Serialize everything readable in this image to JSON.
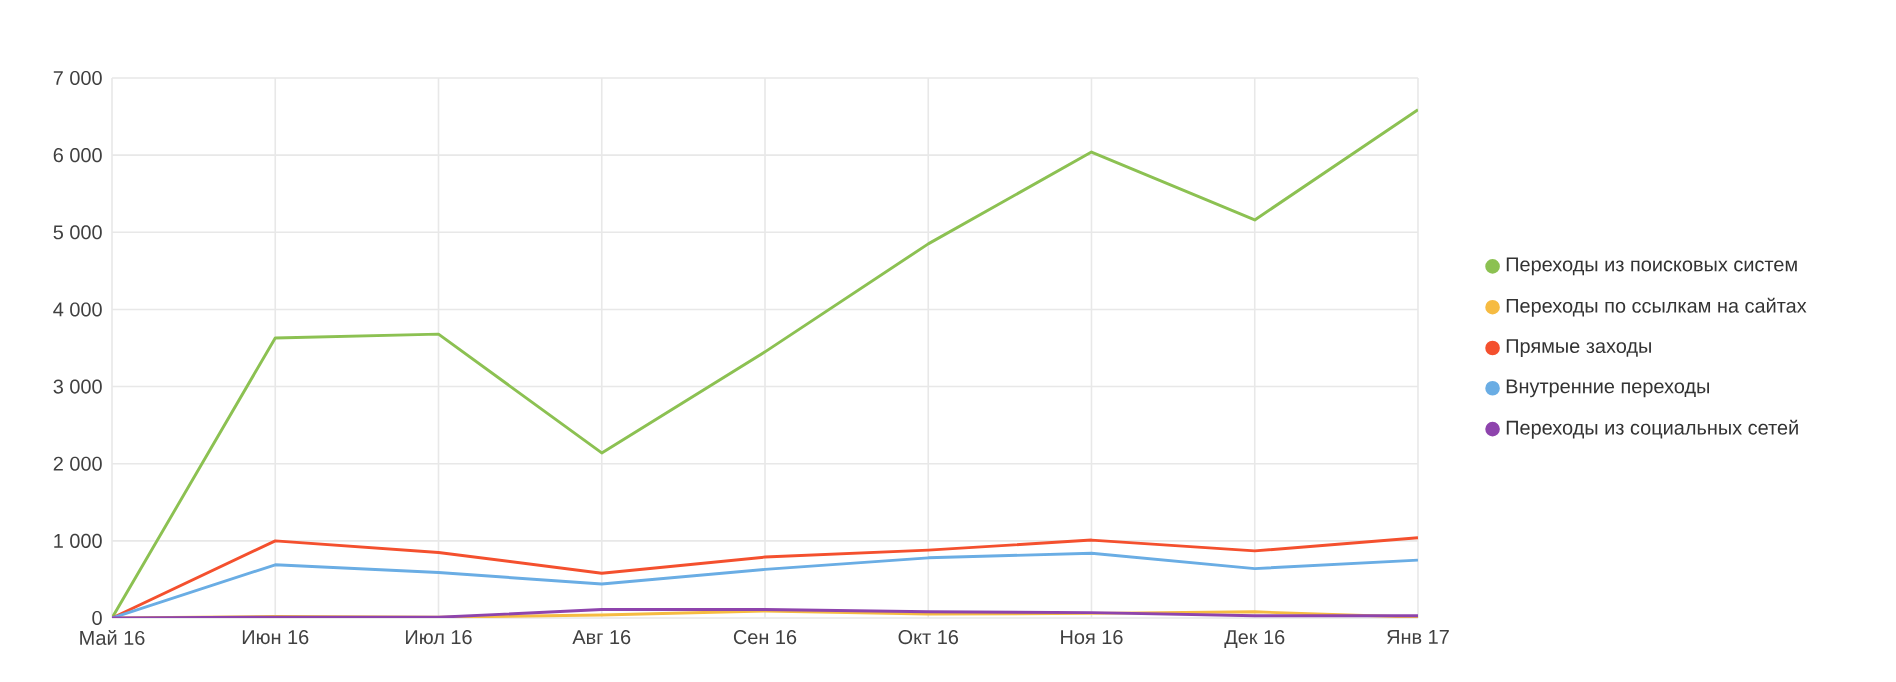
{
  "chart_data": {
    "type": "line",
    "categories": [
      "Май 16",
      "Июн 16",
      "Июл 16",
      "Авг 16",
      "Сен 16",
      "Окт 16",
      "Ноя 16",
      "Дек 16",
      "Янв 17"
    ],
    "series": [
      {
        "name": "Переходы из поисковых систем",
        "color": "#8cc152",
        "values": [
          0,
          3630,
          3680,
          2140,
          3450,
          4850,
          6040,
          5160,
          6590
        ]
      },
      {
        "name": "Переходы по ссылкам на сайтах",
        "color": "#f6bb42",
        "values": [
          0,
          20,
          10,
          40,
          90,
          50,
          60,
          80,
          10
        ]
      },
      {
        "name": "Прямые заходы",
        "color": "#f4502e",
        "values": [
          0,
          1000,
          850,
          580,
          790,
          880,
          1010,
          870,
          1040
        ]
      },
      {
        "name": "Внутренние переходы",
        "color": "#6aade4",
        "values": [
          0,
          690,
          590,
          440,
          630,
          780,
          840,
          640,
          750
        ]
      },
      {
        "name": "Переходы из социальных сетей",
        "color": "#8e44ad",
        "values": [
          0,
          10,
          10,
          110,
          110,
          80,
          70,
          30,
          30
        ]
      }
    ],
    "ylim": [
      0,
      7000
    ],
    "yticks": [
      0,
      {
        "value": 1000,
        "label": "1 000"
      },
      {
        "value": 2000,
        "label": "2 000"
      },
      {
        "value": 3000,
        "label": "3 000"
      },
      {
        "value": 4000,
        "label": "4 000"
      },
      {
        "value": 5000,
        "label": "5 000"
      },
      {
        "value": 6000,
        "label": "6 000"
      },
      {
        "value": 7000,
        "label": "7 000"
      }
    ],
    "grid": true,
    "legend": "right",
    "marker": "none",
    "line_style": "solid"
  }
}
